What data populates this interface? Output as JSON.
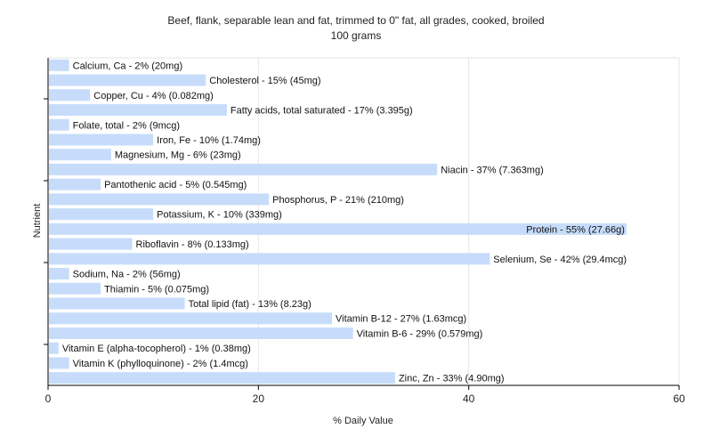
{
  "chart_data": {
    "type": "bar",
    "orientation": "horizontal",
    "title": "Beef, flank, separable lean and fat, trimmed to 0\" fat, all grades, cooked, broiled",
    "subtitle": "100 grams",
    "xlabel": "% Daily Value",
    "ylabel": "Nutrient",
    "xlim": [
      0,
      60
    ],
    "xticks": [
      0,
      20,
      40,
      60
    ],
    "grid": true,
    "bar_color": "#c6dcfa",
    "categories": [
      "Calcium, Ca",
      "Cholesterol",
      "Copper, Cu",
      "Fatty acids, total saturated",
      "Folate, total",
      "Iron, Fe",
      "Magnesium, Mg",
      "Niacin",
      "Pantothenic acid",
      "Phosphorus, P",
      "Potassium, K",
      "Protein",
      "Riboflavin",
      "Selenium, Se",
      "Sodium, Na",
      "Thiamin",
      "Total lipid (fat)",
      "Vitamin B-12",
      "Vitamin B-6",
      "Vitamin E (alpha-tocopherol)",
      "Vitamin K (phylloquinone)",
      "Zinc, Zn"
    ],
    "values": [
      2,
      15,
      4,
      17,
      2,
      10,
      6,
      37,
      5,
      21,
      10,
      55,
      8,
      42,
      2,
      5,
      13,
      27,
      29,
      1,
      2,
      33
    ],
    "labels": [
      "Calcium, Ca - 2% (20mg)",
      "Cholesterol - 15% (45mg)",
      "Copper, Cu - 4% (0.082mg)",
      "Fatty acids, total saturated - 17% (3.395g)",
      "Folate, total - 2% (9mcg)",
      "Iron, Fe - 10% (1.74mg)",
      "Magnesium, Mg - 6% (23mg)",
      "Niacin - 37% (7.363mg)",
      "Pantothenic acid - 5% (0.545mg)",
      "Phosphorus, P - 21% (210mg)",
      "Potassium, K - 10% (339mg)",
      "Protein - 55% (27.66g)",
      "Riboflavin - 8% (0.133mg)",
      "Selenium, Se - 42% (29.4mcg)",
      "Sodium, Na - 2% (56mg)",
      "Thiamin - 5% (0.075mg)",
      "Total lipid (fat) - 13% (8.23g)",
      "Vitamin B-12 - 27% (1.63mcg)",
      "Vitamin B-6 - 29% (0.579mg)",
      "Vitamin E (alpha-tocopherol) - 1% (0.38mg)",
      "Vitamin K (phylloquinone) - 2% (1.4mcg)",
      "Zinc, Zn - 33% (4.90mg)"
    ]
  }
}
